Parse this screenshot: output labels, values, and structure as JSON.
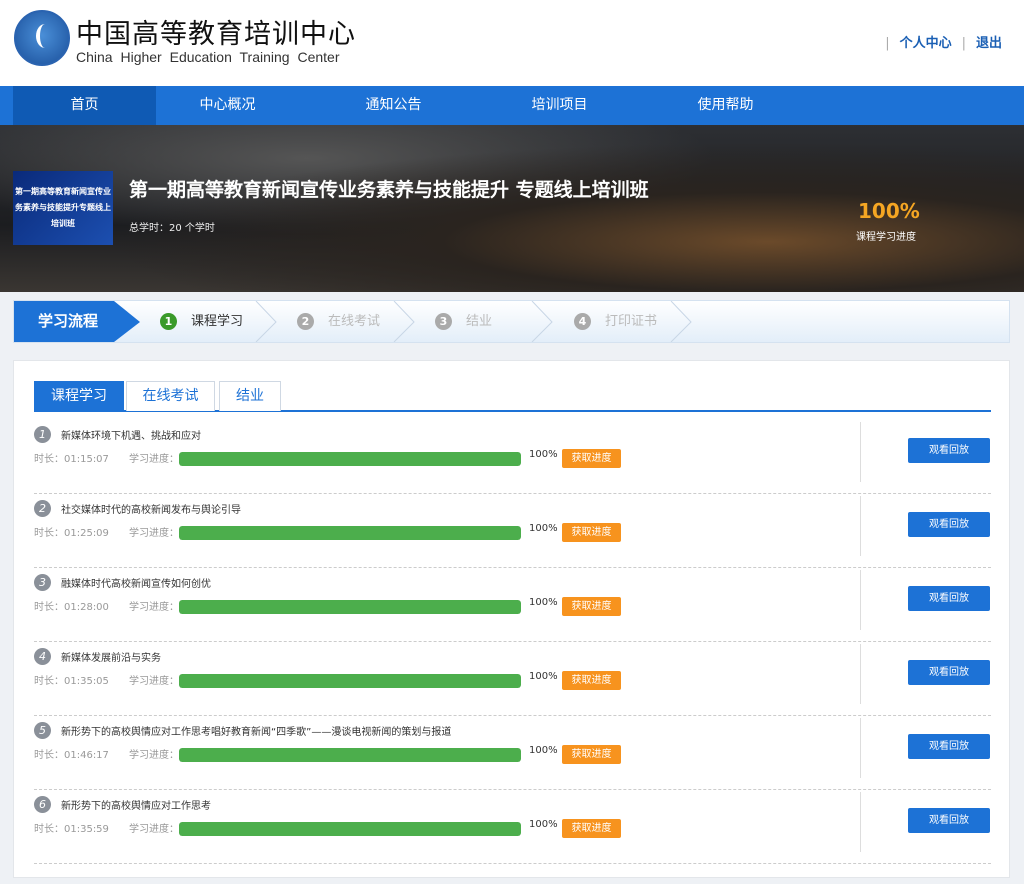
{
  "header": {
    "brand_cn": "中国高等教育培训中心",
    "brand_en": "China Higher Education Training Center",
    "links": [
      "个人中心",
      "退出"
    ]
  },
  "nav": [
    "首页",
    "中心概况",
    "通知公告",
    "培训项目",
    "使用帮助"
  ],
  "banner": {
    "thumb_text": "第一期高等教育新闻宣传业务素养与技能提升专题线上培训班",
    "title": "第一期高等教育新闻宣传业务素养与技能提升 专题线上培训班",
    "hours": "总学时：20 个学时",
    "progress": "100%",
    "progress_label": "课程学习进度"
  },
  "steps": {
    "head": "学习流程",
    "items": [
      {
        "n": "1",
        "label": "课程学习",
        "active": true
      },
      {
        "n": "2",
        "label": "在线考试",
        "active": false
      },
      {
        "n": "3",
        "label": "结业",
        "active": false
      },
      {
        "n": "4",
        "label": "打印证书",
        "active": false
      }
    ]
  },
  "tabs": [
    "课程学习",
    "在线考试",
    "结业"
  ],
  "labels": {
    "progress": "学习进度：",
    "get": "获取进度",
    "replay": "观看回放"
  },
  "courses": [
    {
      "n": "1",
      "title": "新媒体环境下机遇、挑战和应对",
      "duration": "时长：01:15:07",
      "progress": 100,
      "pct": "100%"
    },
    {
      "n": "2",
      "title": "社交媒体时代的高校新闻发布与舆论引导",
      "duration": "时长：01:25:09",
      "progress": 100,
      "pct": "100%"
    },
    {
      "n": "3",
      "title": "融媒体时代高校新闻宣传如何创优",
      "duration": "时长：01:28:00",
      "progress": 100,
      "pct": "100%"
    },
    {
      "n": "4",
      "title": "新媒体发展前沿与实务",
      "duration": "时长：01:35:05",
      "progress": 100,
      "pct": "100%"
    },
    {
      "n": "5",
      "title": "新形势下的高校舆情应对工作思考唱好教育新闻“四季歌”——漫谈电视新闻的策划与报道",
      "duration": "时长：01:46:17",
      "progress": 100,
      "pct": "100%"
    },
    {
      "n": "6",
      "title": "新形势下的高校舆情应对工作思考",
      "duration": "时长：01:35:59",
      "progress": 100,
      "pct": "100%"
    }
  ]
}
